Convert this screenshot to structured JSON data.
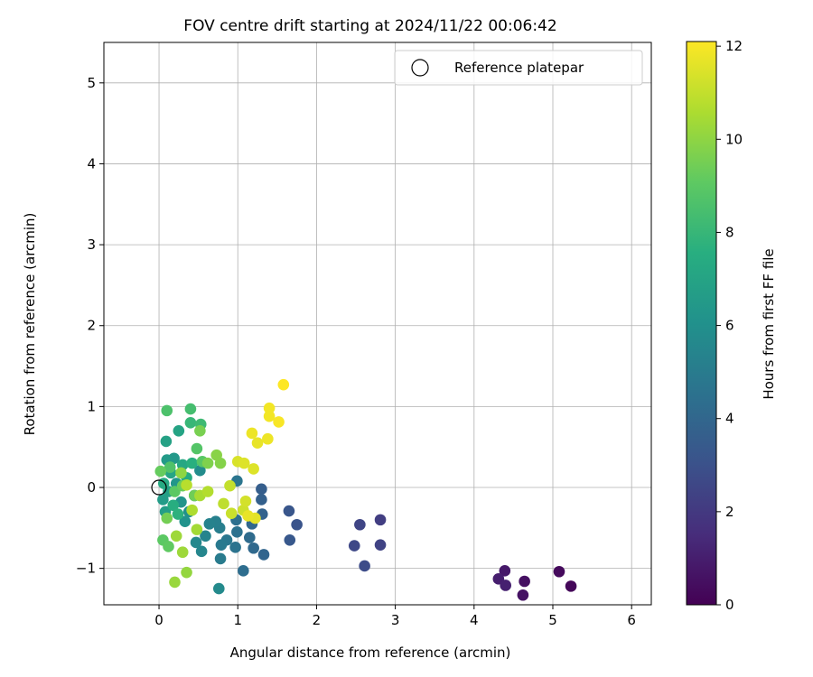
{
  "chart_data": {
    "type": "scatter",
    "title": "FOV centre drift starting at 2024/11/22 00:06:42",
    "xlabel": "Angular distance from reference (arcmin)",
    "ylabel": "Rotation from reference (arcmin)",
    "colorbar_label": "Hours from first FF file",
    "xlim": [
      -0.7,
      6.25
    ],
    "ylim": [
      -1.45,
      5.5
    ],
    "xticks": [
      0,
      1,
      2,
      3,
      4,
      5,
      6
    ],
    "yticks": [
      -1,
      0,
      1,
      2,
      3,
      4,
      5
    ],
    "colorbar_ticks": [
      0,
      2,
      4,
      6,
      8,
      10,
      12
    ],
    "colorbar_range": [
      0,
      12.1
    ],
    "colormap": "viridis",
    "grid": true,
    "legend": {
      "placement": "top-right",
      "entries": [
        "Reference platepar"
      ]
    },
    "reference_point": {
      "x": 0,
      "y": 0
    },
    "points": [
      {
        "x": 5.23,
        "y": -1.22,
        "c": 0.2
      },
      {
        "x": 5.08,
        "y": -1.04,
        "c": 0.3
      },
      {
        "x": 4.64,
        "y": -1.16,
        "c": 0.5
      },
      {
        "x": 4.62,
        "y": -1.33,
        "c": 0.6
      },
      {
        "x": 4.39,
        "y": -1.03,
        "c": 0.8
      },
      {
        "x": 4.31,
        "y": -1.13,
        "c": 1.0
      },
      {
        "x": 4.4,
        "y": -1.21,
        "c": 1.1
      },
      {
        "x": 2.81,
        "y": -0.4,
        "c": 2.2
      },
      {
        "x": 2.81,
        "y": -0.71,
        "c": 2.4
      },
      {
        "x": 2.55,
        "y": -0.46,
        "c": 2.5
      },
      {
        "x": 2.48,
        "y": -0.72,
        "c": 2.6
      },
      {
        "x": 2.61,
        "y": -0.97,
        "c": 2.8
      },
      {
        "x": 1.75,
        "y": -0.46,
        "c": 3.1
      },
      {
        "x": 1.65,
        "y": -0.29,
        "c": 3.2
      },
      {
        "x": 1.66,
        "y": -0.65,
        "c": 3.3
      },
      {
        "x": 1.3,
        "y": -0.02,
        "c": 3.6
      },
      {
        "x": 1.3,
        "y": -0.15,
        "c": 3.7
      },
      {
        "x": 1.31,
        "y": -0.33,
        "c": 3.8
      },
      {
        "x": 1.33,
        "y": -0.83,
        "c": 3.9
      },
      {
        "x": 1.18,
        "y": -0.45,
        "c": 4.0
      },
      {
        "x": 1.2,
        "y": -0.75,
        "c": 4.1
      },
      {
        "x": 1.15,
        "y": -0.62,
        "c": 4.2
      },
      {
        "x": 1.07,
        "y": -1.03,
        "c": 4.3
      },
      {
        "x": 0.98,
        "y": -0.4,
        "c": 4.4
      },
      {
        "x": 0.99,
        "y": -0.55,
        "c": 4.5
      },
      {
        "x": 0.97,
        "y": -0.74,
        "c": 4.6
      },
      {
        "x": 0.99,
        "y": 0.08,
        "c": 4.7
      },
      {
        "x": 0.86,
        "y": -0.65,
        "c": 4.8
      },
      {
        "x": 0.79,
        "y": -0.71,
        "c": 4.9
      },
      {
        "x": 0.78,
        "y": -0.88,
        "c": 5.0
      },
      {
        "x": 0.77,
        "y": -0.5,
        "c": 5.1
      },
      {
        "x": 0.72,
        "y": -0.42,
        "c": 5.2
      },
      {
        "x": 0.64,
        "y": -0.45,
        "c": 5.3
      },
      {
        "x": 0.59,
        "y": -0.6,
        "c": 5.4
      },
      {
        "x": 0.54,
        "y": -0.79,
        "c": 5.5
      },
      {
        "x": 0.47,
        "y": -0.68,
        "c": 5.6
      },
      {
        "x": 0.76,
        "y": -1.25,
        "c": 5.7
      },
      {
        "x": 0.52,
        "y": 0.21,
        "c": 5.8
      },
      {
        "x": 0.45,
        "y": -0.1,
        "c": 5.9
      },
      {
        "x": 0.38,
        "y": -0.3,
        "c": 6.0
      },
      {
        "x": 0.33,
        "y": -0.42,
        "c": 6.1
      },
      {
        "x": 0.28,
        "y": -0.18,
        "c": 6.2
      },
      {
        "x": 0.22,
        "y": 0.05,
        "c": 6.3
      },
      {
        "x": 0.19,
        "y": 0.36,
        "c": 6.4
      },
      {
        "x": 0.1,
        "y": 0.34,
        "c": 6.5
      },
      {
        "x": 0.05,
        "y": -0.15,
        "c": 6.6
      },
      {
        "x": 0.08,
        "y": -0.3,
        "c": 6.7
      },
      {
        "x": 0.12,
        "y": -0.05,
        "c": 6.8
      },
      {
        "x": 0.09,
        "y": 0.57,
        "c": 6.9
      },
      {
        "x": 0.25,
        "y": 0.7,
        "c": 7.0
      },
      {
        "x": 0.15,
        "y": 0.18,
        "c": 7.1
      },
      {
        "x": 0.3,
        "y": 0.28,
        "c": 7.2
      },
      {
        "x": 0.06,
        "y": 0.05,
        "c": 7.3
      },
      {
        "x": 0.35,
        "y": 0.12,
        "c": 7.4
      },
      {
        "x": 0.18,
        "y": -0.22,
        "c": 7.5
      },
      {
        "x": 0.42,
        "y": 0.3,
        "c": 7.6
      },
      {
        "x": 0.24,
        "y": -0.33,
        "c": 7.7
      },
      {
        "x": 0.4,
        "y": 0.8,
        "c": 8.0
      },
      {
        "x": 0.53,
        "y": 0.78,
        "c": 8.2
      },
      {
        "x": 0.4,
        "y": 0.97,
        "c": 8.4
      },
      {
        "x": 0.1,
        "y": 0.95,
        "c": 8.6
      },
      {
        "x": 0.14,
        "y": 0.25,
        "c": 8.7
      },
      {
        "x": 0.48,
        "y": 0.48,
        "c": 8.8
      },
      {
        "x": 0.55,
        "y": 0.32,
        "c": 8.9
      },
      {
        "x": 0.2,
        "y": -0.05,
        "c": 9.0
      },
      {
        "x": 0.05,
        "y": -0.65,
        "c": 9.0
      },
      {
        "x": 0.12,
        "y": -0.73,
        "c": 9.1
      },
      {
        "x": 0.02,
        "y": 0.2,
        "c": 9.2
      },
      {
        "x": 0.3,
        "y": 0.02,
        "c": 9.3
      },
      {
        "x": 0.45,
        "y": -0.1,
        "c": 9.4
      },
      {
        "x": 0.1,
        "y": -0.38,
        "c": 9.5
      },
      {
        "x": 0.52,
        "y": 0.7,
        "c": 9.6
      },
      {
        "x": 0.62,
        "y": 0.3,
        "c": 9.7
      },
      {
        "x": 0.78,
        "y": 0.3,
        "c": 9.8
      },
      {
        "x": 0.73,
        "y": 0.4,
        "c": 9.9
      },
      {
        "x": 0.28,
        "y": 0.18,
        "c": 10.0
      },
      {
        "x": 0.35,
        "y": -1.05,
        "c": 10.1
      },
      {
        "x": 0.2,
        "y": -1.17,
        "c": 10.2
      },
      {
        "x": 0.3,
        "y": -0.8,
        "c": 10.3
      },
      {
        "x": 0.22,
        "y": -0.6,
        "c": 10.3
      },
      {
        "x": 0.48,
        "y": -0.52,
        "c": 10.4
      },
      {
        "x": 0.52,
        "y": -0.1,
        "c": 10.5
      },
      {
        "x": 0.42,
        "y": -0.28,
        "c": 10.6
      },
      {
        "x": 0.62,
        "y": -0.05,
        "c": 10.7
      },
      {
        "x": 0.35,
        "y": 0.03,
        "c": 10.8
      },
      {
        "x": 0.82,
        "y": -0.2,
        "c": 10.9
      },
      {
        "x": 0.9,
        "y": 0.02,
        "c": 11.0
      },
      {
        "x": 0.92,
        "y": -0.32,
        "c": 11.1
      },
      {
        "x": 1.07,
        "y": -0.28,
        "c": 11.2
      },
      {
        "x": 1.1,
        "y": -0.17,
        "c": 11.3
      },
      {
        "x": 1.0,
        "y": 0.32,
        "c": 11.4
      },
      {
        "x": 1.08,
        "y": 0.3,
        "c": 11.5
      },
      {
        "x": 1.2,
        "y": 0.23,
        "c": 11.5
      },
      {
        "x": 1.22,
        "y": -0.38,
        "c": 11.6
      },
      {
        "x": 1.13,
        "y": -0.35,
        "c": 11.7
      },
      {
        "x": 1.25,
        "y": 0.55,
        "c": 11.7
      },
      {
        "x": 1.38,
        "y": 0.6,
        "c": 11.8
      },
      {
        "x": 1.18,
        "y": 0.67,
        "c": 11.8
      },
      {
        "x": 1.4,
        "y": 0.88,
        "c": 11.9
      },
      {
        "x": 1.4,
        "y": 0.98,
        "c": 11.9
      },
      {
        "x": 1.52,
        "y": 0.81,
        "c": 12.0
      },
      {
        "x": 1.58,
        "y": 1.27,
        "c": 12.1
      }
    ]
  }
}
